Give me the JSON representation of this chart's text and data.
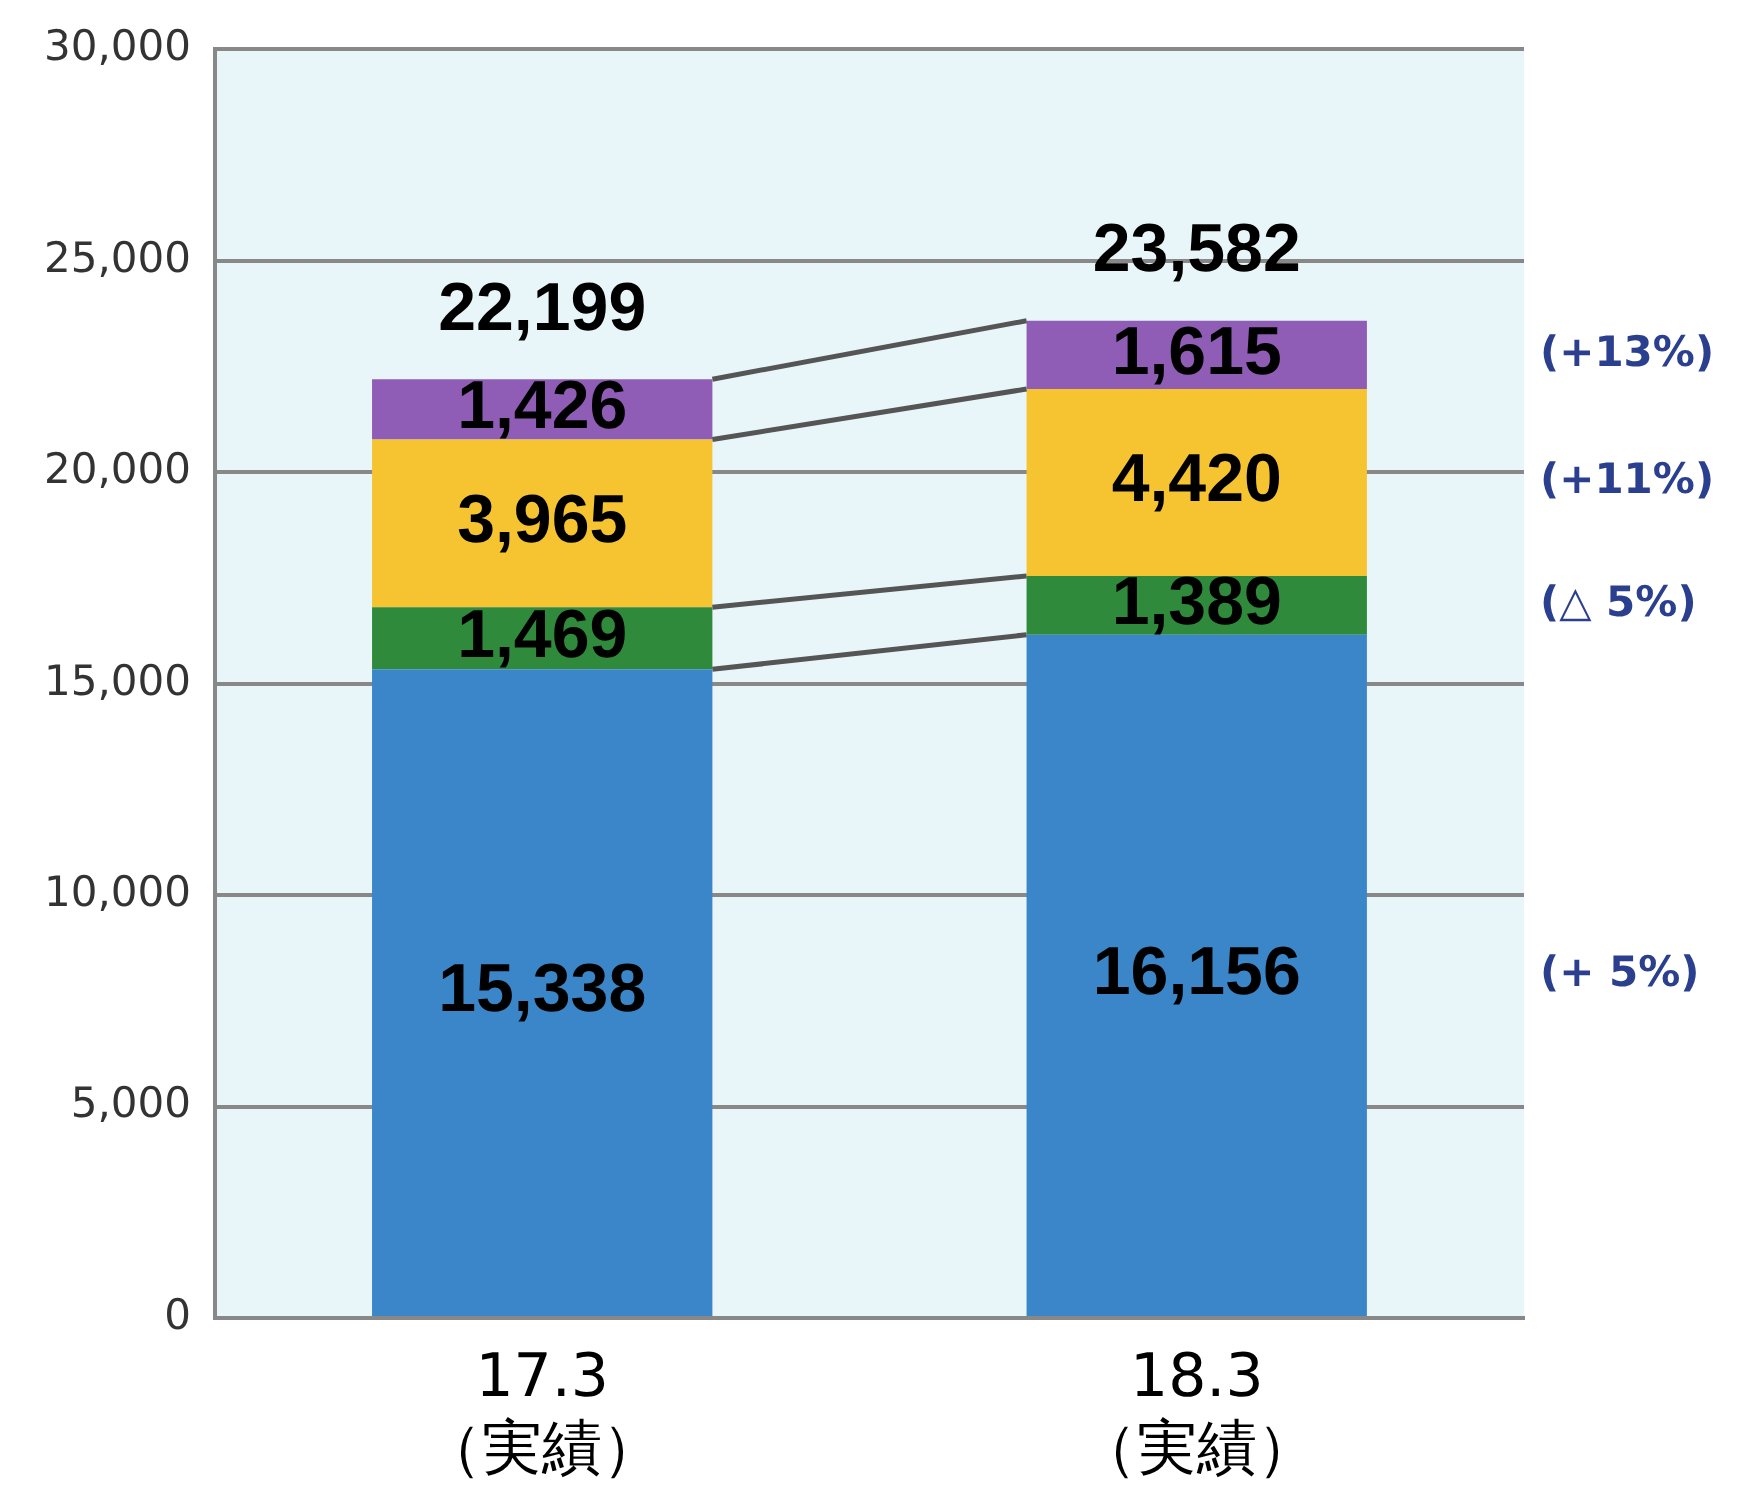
{
  "chart_data": {
    "type": "bar",
    "stacked": true,
    "categories": [
      "17.3\n（実績）",
      "18.3\n（実績）"
    ],
    "series": [
      {
        "color": "#3a86c8",
        "values": [
          15338,
          16156
        ],
        "value_labels": [
          "15,338",
          "16,156"
        ]
      },
      {
        "color": "#2f8a3c",
        "values": [
          1469,
          1389
        ],
        "value_labels": [
          "1,469",
          "1,389"
        ]
      },
      {
        "color": "#f6c431",
        "values": [
          3965,
          4420
        ],
        "value_labels": [
          "3,965",
          "4,420"
        ]
      },
      {
        "color": "#8f5cb6",
        "values": [
          1426,
          1615
        ],
        "value_labels": [
          "1,426",
          "1,615"
        ]
      }
    ],
    "ylim": [
      0,
      30000
    ],
    "yticks": [
      {
        "value": 0,
        "label": "0"
      },
      {
        "value": 5000,
        "label": "5,000"
      },
      {
        "value": 10000,
        "label": "10,000"
      },
      {
        "value": 15000,
        "label": "15,000"
      },
      {
        "value": 20000,
        "label": "20,000"
      },
      {
        "value": 25000,
        "label": "25,000"
      },
      {
        "value": 30000,
        "label": "30,000"
      }
    ],
    "grid": "y",
    "legend": false,
    "totals": [
      "22,199",
      "23,582"
    ],
    "annotations": [
      "(+13%)",
      "(+11%)",
      "(△ 5%)",
      "(+ 5%)"
    ]
  }
}
